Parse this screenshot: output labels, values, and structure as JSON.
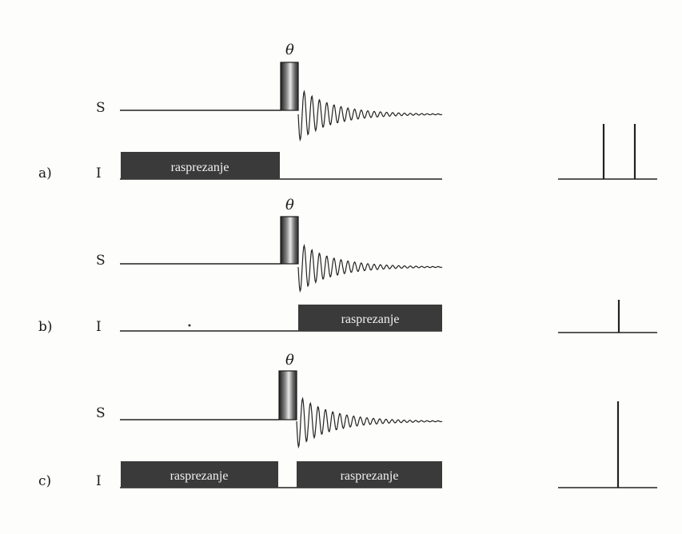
{
  "channel_labels": {
    "s": "S",
    "i": "I"
  },
  "pulse_label": "θ",
  "decoupling_label": "rasprezanje",
  "experiments": [
    {
      "id": "a",
      "label": "a)",
      "decoupling": [
        "before"
      ],
      "peaks": 2
    },
    {
      "id": "b",
      "label": "b)",
      "decoupling": [
        "after"
      ],
      "peaks": 1
    },
    {
      "id": "c",
      "label": "c)",
      "decoupling": [
        "before",
        "after"
      ],
      "peaks": 1
    }
  ]
}
